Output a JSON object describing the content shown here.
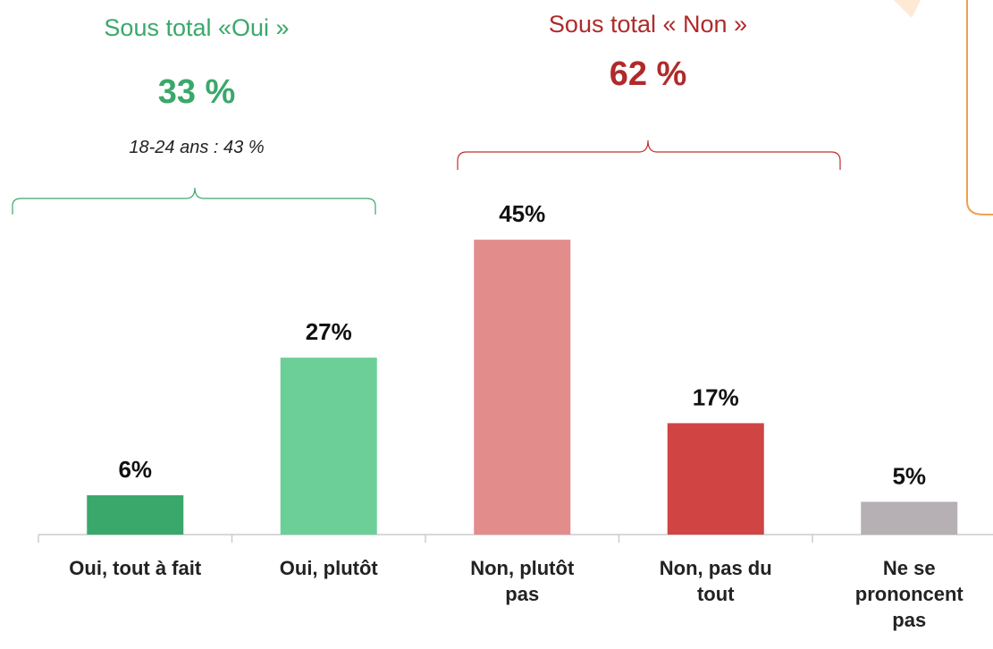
{
  "chart_data": {
    "type": "bar",
    "categories": [
      "Oui, tout à fait",
      "Oui, plutôt",
      "Non, plutôt\npas",
      "Non, pas du\ntout",
      "Ne se\nprononcent\npas"
    ],
    "values": [
      6,
      27,
      45,
      17,
      5
    ],
    "value_labels": [
      "6%",
      "27%",
      "45%",
      "17%",
      "5%"
    ],
    "colors": [
      "#3aa86b",
      "#6ccf98",
      "#e28c8c",
      "#d04444",
      "#b6b0b4"
    ],
    "annotations": {
      "oui_title": "Sous total «Oui »",
      "oui_total": "33 %",
      "oui_note": "18-24 ans : 43 %",
      "non_title": "Sous total « Non »",
      "non_total": "62 %"
    }
  }
}
